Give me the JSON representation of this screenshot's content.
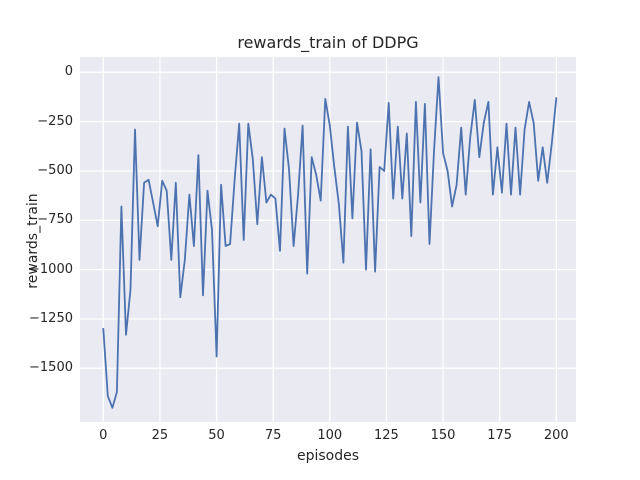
{
  "chart_data": {
    "type": "line",
    "title": "rewards_train of DDPG",
    "xlabel": "episodes",
    "ylabel": "rewards_train",
    "x_ticks": [
      0,
      25,
      50,
      75,
      100,
      125,
      150,
      175,
      200
    ],
    "y_ticks": [
      0,
      -250,
      -500,
      -750,
      -1000,
      -1250,
      -1500
    ],
    "xlim": [
      -10.3,
      208.7
    ],
    "ylim": [
      -1772,
      75
    ],
    "grid": true,
    "legend_position": "none",
    "series_name": "rewards_train",
    "x": [
      0,
      2,
      4,
      6,
      8,
      10,
      12,
      14,
      16,
      18,
      20,
      22,
      24,
      26,
      28,
      30,
      32,
      34,
      36,
      38,
      40,
      42,
      44,
      46,
      48,
      50,
      52,
      54,
      56,
      58,
      60,
      62,
      64,
      66,
      68,
      70,
      72,
      74,
      76,
      78,
      80,
      82,
      84,
      86,
      88,
      90,
      92,
      94,
      96,
      98,
      100,
      102,
      104,
      106,
      108,
      110,
      112,
      114,
      116,
      118,
      120,
      122,
      124,
      126,
      128,
      130,
      132,
      134,
      136,
      138,
      140,
      142,
      144,
      146,
      148,
      150,
      152,
      154,
      156,
      158,
      160,
      162,
      164,
      166,
      168,
      170,
      172,
      174,
      176,
      178,
      180,
      182,
      184,
      186,
      188,
      190,
      192,
      194,
      196,
      198,
      200
    ],
    "values": [
      -1300,
      -1640,
      -1700,
      -1620,
      -680,
      -1330,
      -1100,
      -290,
      -950,
      -560,
      -545,
      -660,
      -780,
      -550,
      -600,
      -950,
      -560,
      -1140,
      -950,
      -620,
      -880,
      -420,
      -1130,
      -600,
      -800,
      -1440,
      -570,
      -880,
      -870,
      -540,
      -260,
      -850,
      -260,
      -440,
      -770,
      -430,
      -660,
      -620,
      -640,
      -905,
      -285,
      -490,
      -880,
      -620,
      -270,
      -1020,
      -430,
      -520,
      -650,
      -135,
      -270,
      -480,
      -670,
      -965,
      -275,
      -740,
      -255,
      -400,
      -1000,
      -390,
      -1010,
      -480,
      -500,
      -155,
      -640,
      -275,
      -640,
      -310,
      -830,
      -150,
      -660,
      -160,
      -870,
      -400,
      -25,
      -410,
      -500,
      -680,
      -570,
      -280,
      -620,
      -330,
      -140,
      -430,
      -255,
      -150,
      -620,
      -380,
      -610,
      -260,
      -620,
      -280,
      -620,
      -290,
      -150,
      -258,
      -550,
      -380,
      -560,
      -360,
      -130
    ],
    "colors": {
      "line": "#4C72B0",
      "axes_background": "#EAEAF2",
      "grid": "#FFFFFF",
      "figure_background": "#FFFFFF",
      "text": "#262626"
    }
  }
}
